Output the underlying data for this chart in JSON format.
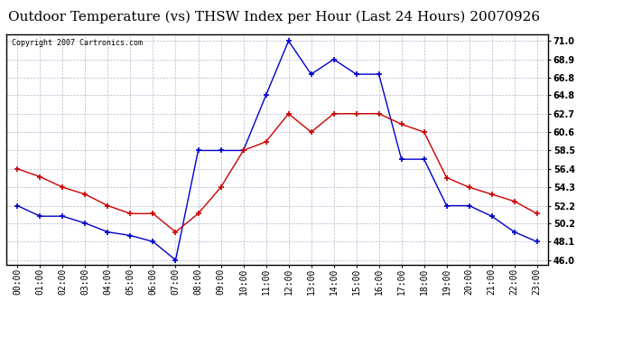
{
  "title": "Outdoor Temperature (vs) THSW Index per Hour (Last 24 Hours) 20070926",
  "copyright": "Copyright 2007 Cartronics.com",
  "hours": [
    "00:00",
    "01:00",
    "02:00",
    "03:00",
    "04:00",
    "05:00",
    "06:00",
    "07:00",
    "08:00",
    "09:00",
    "10:00",
    "11:00",
    "12:00",
    "13:00",
    "14:00",
    "15:00",
    "16:00",
    "17:00",
    "18:00",
    "19:00",
    "20:00",
    "21:00",
    "22:00",
    "23:00"
  ],
  "temp_red": [
    56.4,
    55.5,
    54.3,
    53.5,
    52.2,
    51.3,
    51.3,
    49.2,
    51.3,
    54.3,
    58.5,
    59.5,
    62.7,
    60.6,
    62.7,
    62.7,
    62.7,
    61.5,
    60.6,
    55.4,
    54.3,
    53.5,
    52.7,
    51.3
  ],
  "thsw_blue": [
    52.2,
    51.0,
    51.0,
    50.2,
    49.2,
    48.8,
    48.1,
    46.0,
    58.5,
    58.5,
    58.5,
    64.8,
    71.0,
    67.2,
    68.9,
    67.2,
    67.2,
    57.5,
    57.5,
    52.2,
    52.2,
    51.0,
    49.2,
    48.1
  ],
  "y_ticks": [
    46.0,
    48.1,
    50.2,
    52.2,
    54.3,
    56.4,
    58.5,
    60.6,
    62.7,
    64.8,
    66.8,
    68.9,
    71.0
  ],
  "ylim": [
    45.5,
    71.8
  ],
  "bg_color": "#ffffff",
  "grid_color": "#b0b0cc",
  "title_fontsize": 11,
  "copyright_fontsize": 6,
  "red_color": "#cc0000",
  "blue_color": "#0000cc",
  "tick_fontsize": 7,
  "ytick_fontsize": 7
}
